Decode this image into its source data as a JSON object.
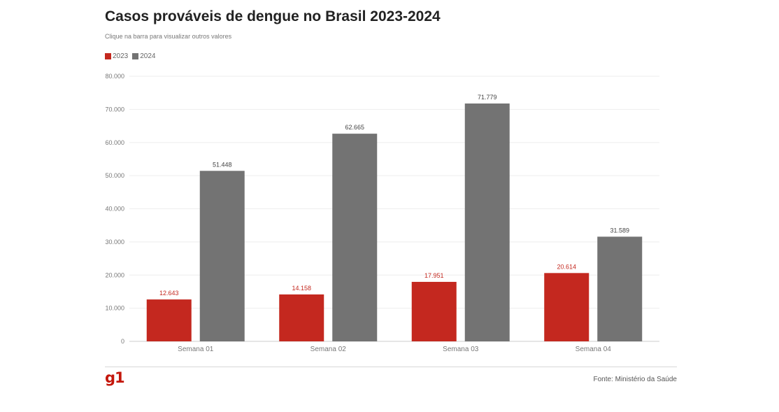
{
  "header": {
    "title": "Casos prováveis de dengue no Brasil 2023-2024",
    "subtitle": "Clique na barra para visualizar outros valores"
  },
  "legend": {
    "items": [
      {
        "label": "2023",
        "color": "#c4281f"
      },
      {
        "label": "2024",
        "color": "#737373"
      }
    ]
  },
  "footer": {
    "logo": "g1",
    "source": "Fonte: Ministério da Saúde"
  },
  "chart_data": {
    "type": "bar",
    "title": "Casos prováveis de dengue no Brasil 2023-2024",
    "xlabel": "",
    "ylabel": "",
    "categories": [
      "Semana 01",
      "Semana 02",
      "Semana 03",
      "Semana 04"
    ],
    "series": [
      {
        "name": "2023",
        "values": [
          12643,
          14158,
          17951,
          20614
        ],
        "labels": [
          "12.643",
          "14.158",
          "17.951",
          "20.614"
        ],
        "color": "#c4281f",
        "label_color": "#c4281f"
      },
      {
        "name": "2024",
        "values": [
          51448,
          62665,
          71779,
          31589
        ],
        "labels": [
          "51.448",
          "62.665",
          "71.779",
          "31.589"
        ],
        "color": "#737373",
        "label_color": "#444444"
      }
    ],
    "ylim": [
      0,
      80000
    ],
    "yticks": [
      0,
      10000,
      20000,
      30000,
      40000,
      50000,
      60000,
      70000,
      80000
    ],
    "ytick_labels": [
      "0",
      "10.000",
      "20.000",
      "30.000",
      "40.000",
      "50.000",
      "60.000",
      "70.000",
      "80.000"
    ],
    "grid": true,
    "legend_position": "top-left"
  }
}
